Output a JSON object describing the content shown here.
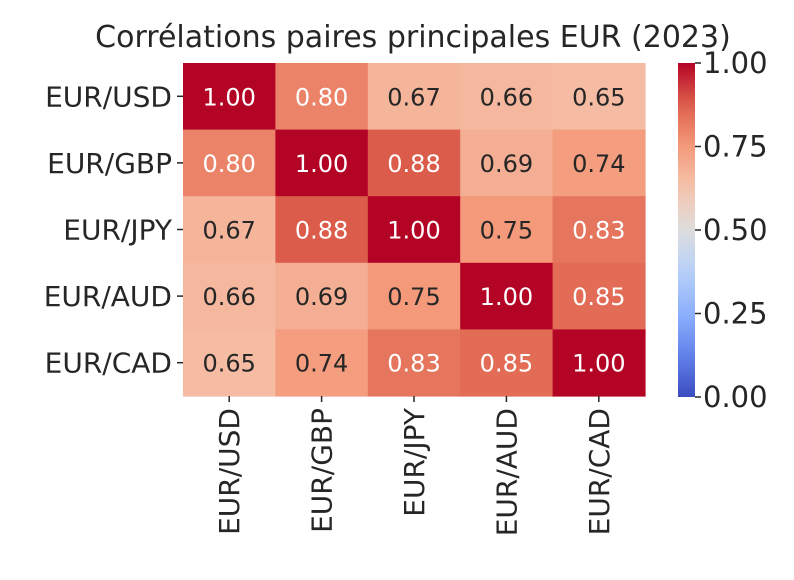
{
  "chart_data": {
    "type": "heatmap",
    "title": "Corrélations paires principales EUR (2023)",
    "xlabel": "",
    "ylabel": "",
    "x_categories": [
      "EUR/USD",
      "EUR/GBP",
      "EUR/JPY",
      "EUR/AUD",
      "EUR/CAD"
    ],
    "y_categories": [
      "EUR/USD",
      "EUR/GBP",
      "EUR/JPY",
      "EUR/AUD",
      "EUR/CAD"
    ],
    "values": [
      [
        1.0,
        0.8,
        0.67,
        0.66,
        0.65
      ],
      [
        0.8,
        1.0,
        0.88,
        0.69,
        0.74
      ],
      [
        0.67,
        0.88,
        1.0,
        0.75,
        0.83
      ],
      [
        0.66,
        0.69,
        0.75,
        1.0,
        0.85
      ],
      [
        0.65,
        0.74,
        0.83,
        0.85,
        1.0
      ]
    ],
    "value_labels": [
      [
        "1.00",
        "0.80",
        "0.67",
        "0.66",
        "0.65"
      ],
      [
        "0.80",
        "1.00",
        "0.88",
        "0.69",
        "0.74"
      ],
      [
        "0.67",
        "0.88",
        "1.00",
        "0.75",
        "0.83"
      ],
      [
        "0.66",
        "0.69",
        "0.75",
        "1.00",
        "0.85"
      ],
      [
        "0.65",
        "0.74",
        "0.83",
        "0.85",
        "1.00"
      ]
    ],
    "colormap": "coolwarm",
    "vmin": 0,
    "vmax": 1,
    "colorbar": {
      "ticks": [
        0,
        0.25,
        0.5,
        0.75,
        1
      ],
      "tick_labels": [
        "0.00",
        "0.25",
        "0.50",
        "0.75",
        "1.00"
      ],
      "placement": "right"
    },
    "x_tick_rotation": "vertical",
    "grid": false
  }
}
